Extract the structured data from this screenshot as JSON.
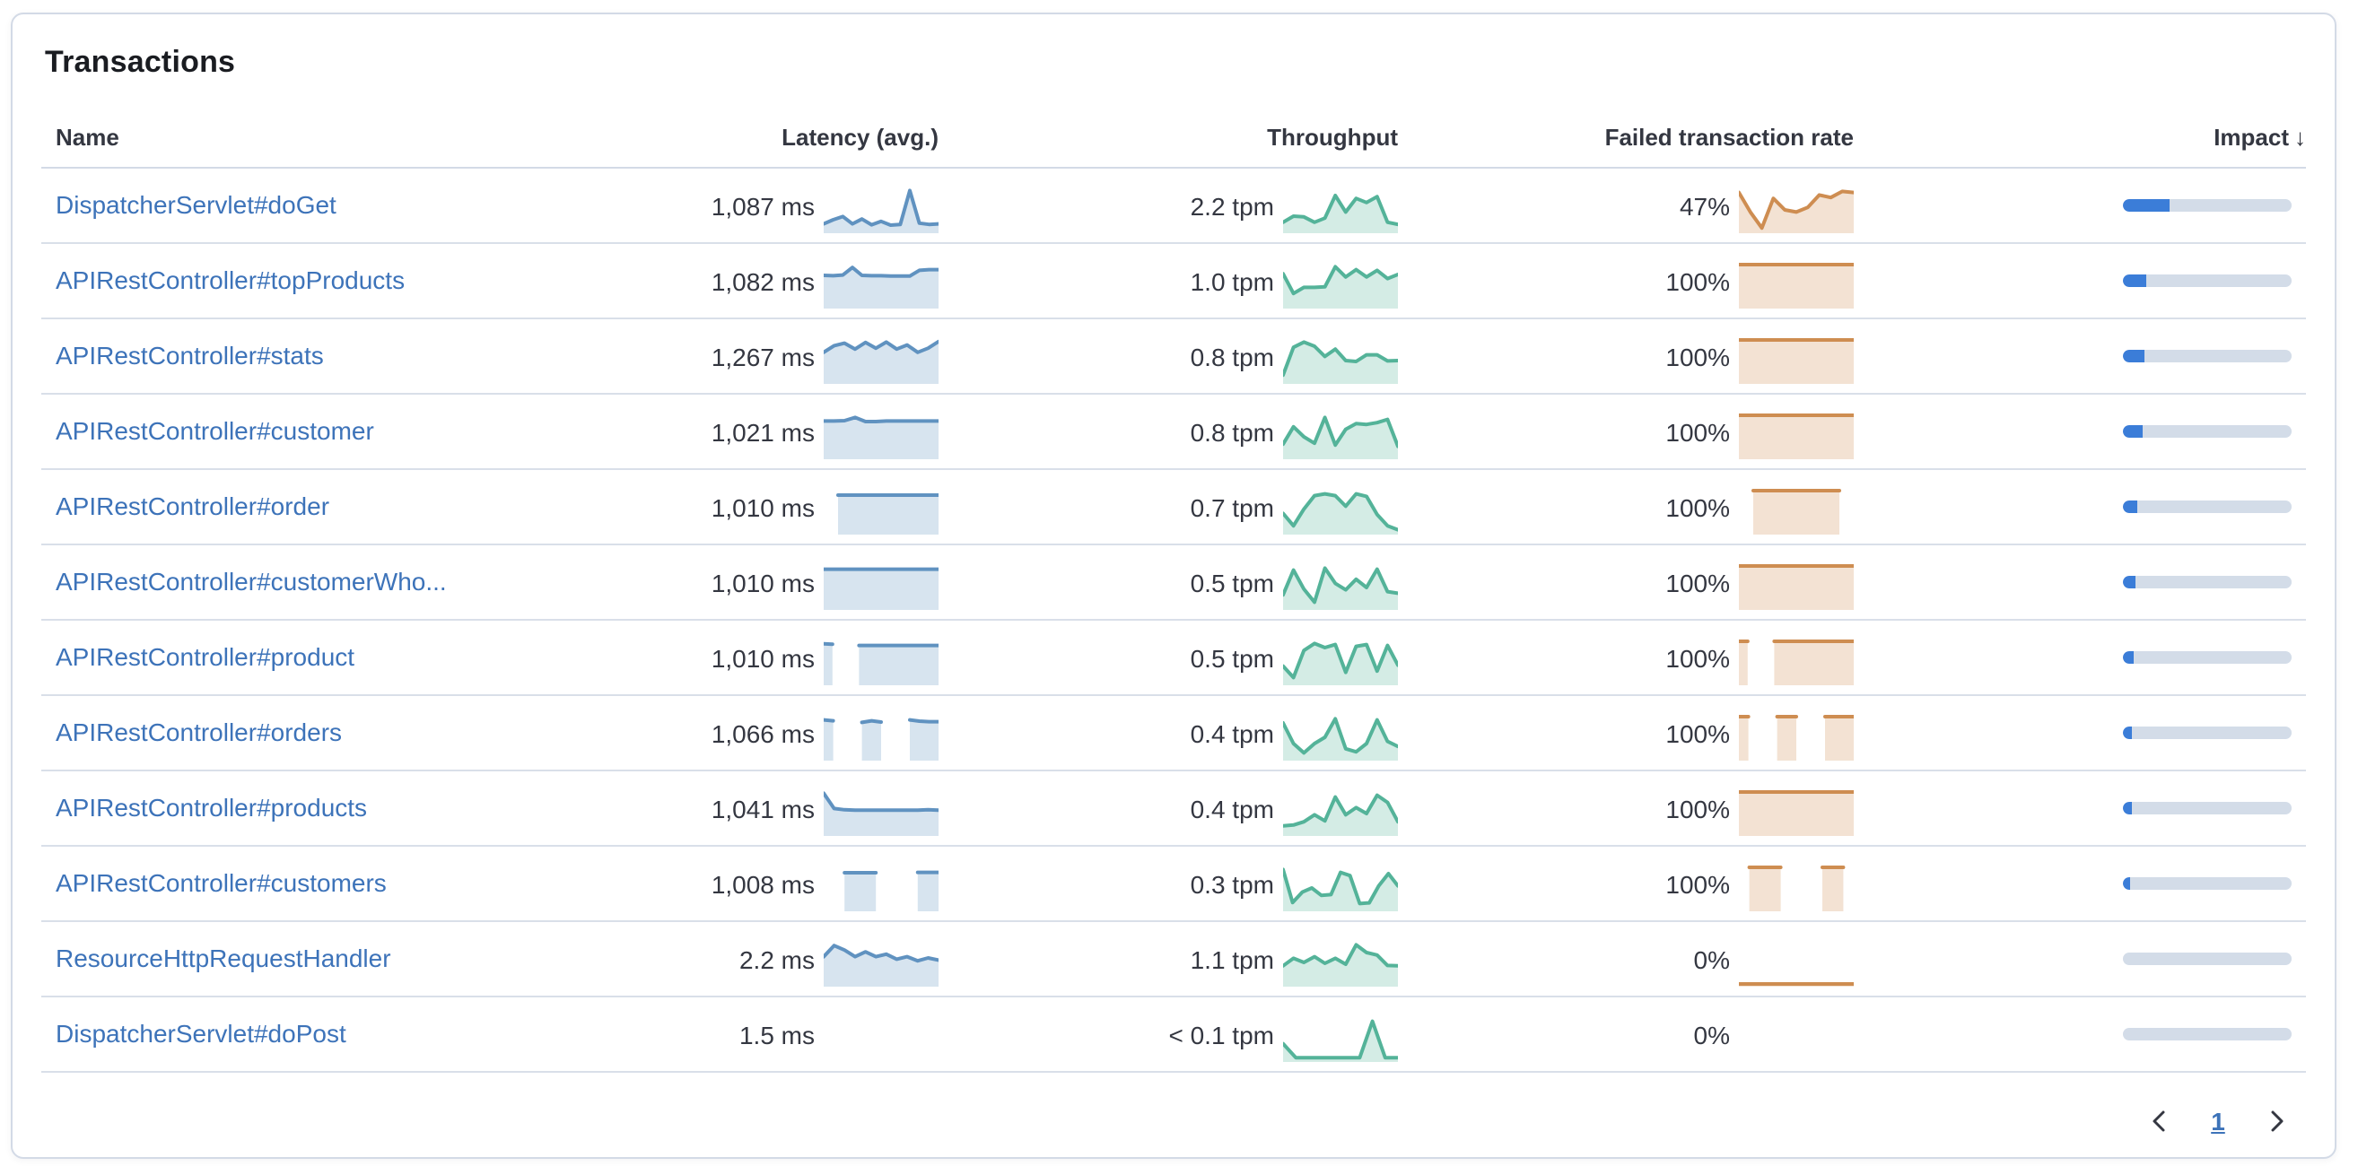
{
  "panel": {
    "title": "Transactions"
  },
  "table": {
    "columns": [
      {
        "label": "Name",
        "align": "left"
      },
      {
        "label": "Latency (avg.)",
        "align": "right"
      },
      {
        "label": "Throughput",
        "align": "right"
      },
      {
        "label": "Failed transaction rate",
        "align": "right"
      },
      {
        "label": "Impact",
        "align": "right",
        "sort": "desc",
        "sort_icon": "↓"
      }
    ],
    "rows": [
      {
        "name": "DispatcherServlet#doGet",
        "latency": "1,087 ms",
        "latency_spark": [
          0.16,
          0.26,
          0.34,
          0.16,
          0.28,
          0.14,
          0.22,
          0.13,
          0.15,
          0.97,
          0.18,
          0.15,
          0.16
        ],
        "throughput": "2.2 tpm",
        "throughput_spark": [
          0.2,
          0.35,
          0.33,
          0.2,
          0.3,
          0.85,
          0.45,
          0.78,
          0.68,
          0.82,
          0.2,
          0.15
        ],
        "failed_rate": "47%",
        "failed_spark": [
          0.92,
          0.45,
          0.06,
          0.78,
          0.5,
          0.45,
          0.56,
          0.86,
          0.8,
          0.95,
          0.92
        ],
        "impact": 0.28
      },
      {
        "name": "APIRestController#topProducts",
        "latency": "1,082 ms",
        "latency_spark": [
          0.74,
          0.73,
          0.75,
          0.93,
          0.74,
          0.73,
          0.73,
          0.72,
          0.72,
          0.72,
          0.86,
          0.88,
          0.88
        ],
        "throughput": "1.0 tpm",
        "throughput_spark": [
          0.78,
          0.3,
          0.45,
          0.45,
          0.46,
          0.95,
          0.7,
          0.88,
          0.7,
          0.86,
          0.66,
          0.76
        ],
        "failed_rate": "100%",
        "failed_spark": [
          1,
          1,
          1,
          1,
          1,
          1,
          1,
          1,
          1,
          1,
          1,
          1
        ],
        "impact": 0.135
      },
      {
        "name": "APIRestController#stats",
        "latency": "1,267 ms",
        "latency_spark": [
          0.7,
          0.86,
          0.92,
          0.78,
          0.94,
          0.8,
          0.95,
          0.78,
          0.88,
          0.7,
          0.8,
          0.96
        ],
        "throughput": "0.8 tpm",
        "throughput_spark": [
          0.15,
          0.82,
          0.95,
          0.85,
          0.6,
          0.78,
          0.5,
          0.48,
          0.64,
          0.64,
          0.49,
          0.5
        ],
        "failed_rate": "100%",
        "failed_spark": [
          1,
          1,
          1,
          1,
          1,
          1,
          1,
          1,
          1,
          1,
          1,
          1
        ],
        "impact": 0.13
      },
      {
        "name": "APIRestController#customer",
        "latency": "1,021 ms",
        "latency_spark": [
          0.86,
          0.86,
          0.87,
          0.95,
          0.85,
          0.85,
          0.86,
          0.86,
          0.86,
          0.86,
          0.86,
          0.86
        ],
        "throughput": "0.8 tpm",
        "throughput_spark": [
          0.3,
          0.72,
          0.48,
          0.32,
          0.95,
          0.28,
          0.66,
          0.8,
          0.78,
          0.82,
          0.9,
          0.25
        ],
        "failed_rate": "100%",
        "failed_spark": [
          1,
          1,
          1,
          1,
          1,
          1,
          1,
          1,
          1,
          1,
          1,
          1
        ],
        "impact": 0.115
      },
      {
        "name": "APIRestController#order",
        "latency": "1,010 ms",
        "latency_spark": [
          null,
          0.89,
          0.89,
          0.89,
          0.89,
          0.89,
          0.89,
          0.89,
          0.89
        ],
        "throughput": "0.7 tpm",
        "throughput_spark": [
          0.45,
          0.15,
          0.55,
          0.88,
          0.92,
          0.88,
          0.62,
          0.92,
          0.86,
          0.42,
          0.15,
          0.05
        ],
        "failed_rate": "100%",
        "failed_spark": [
          null,
          1,
          1,
          1,
          1,
          1,
          1,
          1,
          null
        ],
        "impact": 0.09
      },
      {
        "name": "APIRestController#customerWho...",
        "latency": "1,010 ms",
        "latency_spark": [
          0.92,
          0.92,
          0.92,
          0.92,
          0.92,
          0.92,
          0.92,
          0.92,
          0.92,
          0.92
        ],
        "throughput": "0.5 tpm",
        "throughput_spark": [
          0.3,
          0.9,
          0.44,
          0.12,
          0.95,
          0.58,
          0.42,
          0.68,
          0.48,
          0.92,
          0.38,
          0.34
        ],
        "failed_rate": "100%",
        "failed_spark": [
          1,
          1,
          1,
          1,
          1,
          1,
          1,
          1,
          1,
          1,
          1,
          1
        ],
        "impact": 0.07
      },
      {
        "name": "APIRestController#product",
        "latency": "1,010 ms",
        "latency_spark": [
          0.94,
          0.93,
          null,
          null,
          0.9,
          0.9,
          0.9,
          0.9,
          0.9,
          0.9,
          0.9,
          0.9,
          0.9,
          0.9
        ],
        "throughput": "0.5 tpm",
        "throughput_spark": [
          0.4,
          0.12,
          0.78,
          0.95,
          0.85,
          0.92,
          0.25,
          0.88,
          0.92,
          0.28,
          0.9,
          0.42
        ],
        "failed_rate": "100%",
        "failed_spark": [
          1,
          1,
          null,
          null,
          1,
          1,
          1,
          1,
          1,
          1,
          1,
          1,
          1,
          1
        ],
        "impact": 0.065
      },
      {
        "name": "APIRestController#orders",
        "latency": "1,066 ms",
        "latency_spark": [
          0.92,
          0.9,
          null,
          null,
          0.86,
          0.9,
          0.87,
          null,
          null,
          0.92,
          0.89,
          0.88,
          0.88
        ],
        "throughput": "0.4 tpm",
        "throughput_spark": [
          0.85,
          0.35,
          0.12,
          0.35,
          0.5,
          0.95,
          0.22,
          0.15,
          0.35,
          0.92,
          0.4,
          0.28
        ],
        "failed_rate": "100%",
        "failed_spark": [
          1,
          1,
          null,
          null,
          1,
          1,
          1,
          null,
          null,
          1,
          1,
          1,
          1
        ],
        "impact": 0.055
      },
      {
        "name": "APIRestController#products",
        "latency": "1,041 ms",
        "latency_spark": [
          0.97,
          0.6,
          0.57,
          0.56,
          0.56,
          0.56,
          0.56,
          0.56,
          0.56,
          0.56,
          0.57,
          0.56
        ],
        "throughput": "0.4 tpm",
        "throughput_spark": [
          0.18,
          0.2,
          0.28,
          0.45,
          0.3,
          0.88,
          0.45,
          0.62,
          0.48,
          0.92,
          0.75,
          0.28
        ],
        "failed_rate": "100%",
        "failed_spark": [
          1,
          1,
          1,
          1,
          1,
          1,
          1,
          1,
          1,
          1,
          1,
          1
        ],
        "impact": 0.05
      },
      {
        "name": "APIRestController#customers",
        "latency": "1,008 ms",
        "latency_spark": [
          null,
          null,
          0.87,
          0.87,
          0.87,
          0.87,
          null,
          null,
          null,
          0.88,
          0.88,
          0.88
        ],
        "throughput": "0.3 tpm",
        "throughput_spark": [
          0.95,
          0.15,
          0.4,
          0.5,
          0.32,
          0.34,
          0.88,
          0.8,
          0.12,
          0.14,
          0.55,
          0.85,
          0.55
        ],
        "failed_rate": "100%",
        "failed_spark": [
          null,
          1,
          1,
          1,
          1,
          null,
          null,
          null,
          1,
          1,
          1,
          null
        ],
        "impact": 0.04
      },
      {
        "name": "ResourceHttpRequestHandler",
        "latency": "2.2 ms",
        "latency_spark": [
          0.66,
          0.93,
          0.82,
          0.66,
          0.78,
          0.66,
          0.72,
          0.6,
          0.66,
          0.56,
          0.63,
          0.58
        ],
        "throughput": "1.1 tpm",
        "throughput_spark": [
          0.44,
          0.62,
          0.52,
          0.66,
          0.5,
          0.62,
          0.48,
          0.95,
          0.76,
          0.7,
          0.45,
          0.44
        ],
        "failed_rate": "0%",
        "failed_spark": [
          0,
          0,
          0,
          0,
          0,
          0,
          0,
          0
        ],
        "impact": 0
      },
      {
        "name": "DispatcherServlet#doPost",
        "latency": "1.5 ms",
        "latency_spark": [],
        "throughput": "< 0.1 tpm",
        "throughput_spark": [
          0.38,
          0.04,
          0.04,
          0.04,
          0.04,
          0.04,
          0.04,
          0.92,
          0.04,
          0.04
        ],
        "failed_rate": "0%",
        "failed_spark": [],
        "impact": 0
      }
    ]
  },
  "pagination": {
    "current_page": "1"
  },
  "colors": {
    "latency": "#6092C0",
    "throughput": "#54B399",
    "failed": "#CE8D51",
    "impact_fill": "#3B7DD8",
    "impact_track": "#D3DCE8",
    "link": "#3D73B9"
  }
}
